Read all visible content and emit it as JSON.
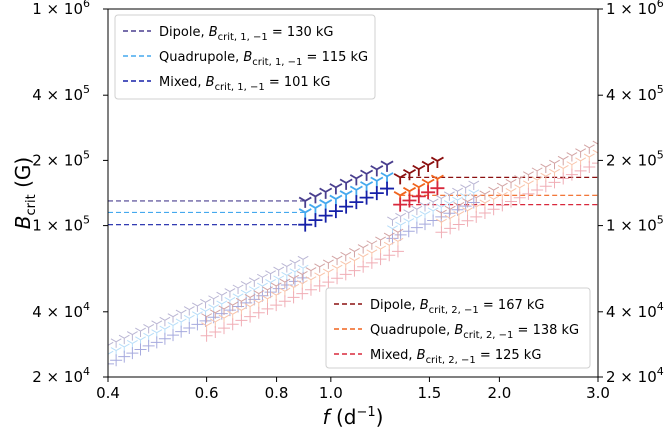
{
  "chart_data": {
    "type": "scatter",
    "xlabel": {
      "base": "f",
      "unit_open": " (d",
      "exp": "−1",
      "unit_close": ")"
    },
    "ylabel": {
      "base": "B",
      "sub": "crit",
      "unit": " (G)"
    },
    "xscale": "log",
    "yscale": "log",
    "xlim": [
      0.4,
      3.0
    ],
    "ylim": [
      20000,
      1000000
    ],
    "x_ticks": [
      {
        "value": 0.4,
        "label": "0.4"
      },
      {
        "value": 0.6,
        "label": "0.6"
      },
      {
        "value": 0.8,
        "label": "0.8"
      },
      {
        "value": 1.0,
        "label": "1.0"
      },
      {
        "value": 1.5,
        "label": "1.5"
      },
      {
        "value": 2.0,
        "label": "2.0"
      },
      {
        "value": 3.0,
        "label": "3.0"
      }
    ],
    "y_ticks": [
      {
        "value": 20000,
        "mant": "2 × 10",
        "exp": "4"
      },
      {
        "value": 40000,
        "mant": "4 × 10",
        "exp": "4"
      },
      {
        "value": 100000,
        "mant": "1 × 10",
        "exp": "5"
      },
      {
        "value": 200000,
        "mant": "2 × 10",
        "exp": "5"
      },
      {
        "value": 400000,
        "mant": "4 × 10",
        "exp": "5"
      },
      {
        "value": 1000000,
        "mant": "1 × 10",
        "exp": "6"
      }
    ],
    "legends": [
      {
        "position": "top-left",
        "entries": [
          {
            "prefix": "Dipole, ",
            "sub": "crit, 1, −1",
            "value": " = 130 kG",
            "color": "#4a3f8f"
          },
          {
            "prefix": "Quadrupole, ",
            "sub": "crit, 1, −1",
            "value": " = 115 kG",
            "color": "#45a9ee"
          },
          {
            "prefix": "Mixed, ",
            "sub": "crit, 1, −1",
            "value": " = 101 kG",
            "color": "#1620a8"
          }
        ]
      },
      {
        "position": "bottom-right",
        "entries": [
          {
            "prefix": "Dipole, ",
            "sub": "crit, 2, −1",
            "value": " = 167 kG",
            "color": "#8b1010"
          },
          {
            "prefix": "Quadrupole, ",
            "sub": "crit, 2, −1",
            "value": " = 138 kG",
            "color": "#f0641e"
          },
          {
            "prefix": "Mixed, ",
            "sub": "crit, 2, −1",
            "value": " = 125 kG",
            "color": "#d8283c"
          }
        ]
      }
    ],
    "series": [
      {
        "group": 1,
        "type": "Dipole",
        "marker": "tri",
        "color": "#4a3f8f",
        "x_range": [
          0.4,
          1.8
        ],
        "y_start": 28000,
        "slope": 1.14,
        "highlight_x": [
          0.9,
          1.26
        ],
        "hline_y": 130000
      },
      {
        "group": 1,
        "type": "Quadrupole",
        "marker": "tri",
        "color": "#45a9ee",
        "x_range": [
          0.4,
          1.8
        ],
        "y_start": 25500,
        "slope": 1.14,
        "highlight_x": [
          0.9,
          1.26
        ],
        "hline_y": 115000
      },
      {
        "group": 1,
        "type": "Mixed",
        "marker": "plus",
        "color": "#1620a8",
        "x_range": [
          0.4,
          1.8
        ],
        "y_start": 23000,
        "slope": 1.14,
        "highlight_x": [
          0.9,
          1.26
        ],
        "hline_y": 101000
      },
      {
        "group": 2,
        "type": "Dipole",
        "marker": "tri",
        "color": "#8b1010",
        "x_range": [
          0.6,
          3.0
        ],
        "y_start": 38000,
        "slope": 1.14,
        "highlight_x": [
          1.33,
          1.55
        ],
        "hline_y": 167000
      },
      {
        "group": 2,
        "type": "Quadrupole",
        "marker": "tri",
        "color": "#f0641e",
        "x_range": [
          0.6,
          3.0
        ],
        "y_start": 34500,
        "slope": 1.14,
        "highlight_x": [
          1.33,
          1.55
        ],
        "hline_y": 138000
      },
      {
        "group": 2,
        "type": "Mixed",
        "marker": "plus",
        "color": "#d8283c",
        "x_range": [
          0.6,
          3.0
        ],
        "y_start": 31000,
        "slope": 1.14,
        "highlight_x": [
          1.33,
          1.55
        ],
        "hline_y": 125000
      }
    ]
  }
}
